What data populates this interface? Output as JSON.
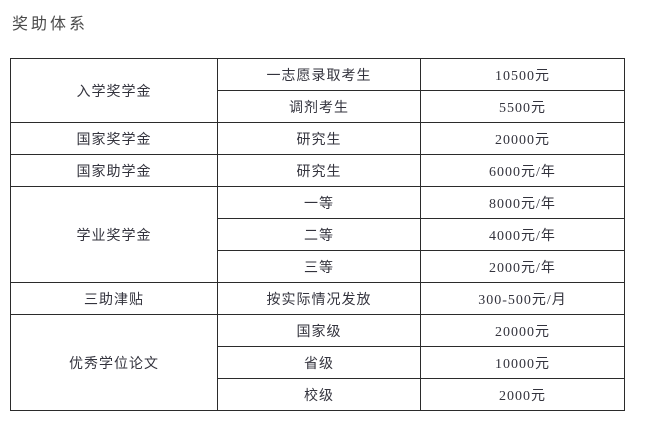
{
  "page": {
    "title": "奖助体系"
  },
  "table": {
    "groups": [
      {
        "category": "入学奖学金",
        "rows": [
          {
            "item": "一志愿录取考生",
            "amount": "10500元"
          },
          {
            "item": "调剂考生",
            "amount": "5500元"
          }
        ]
      },
      {
        "category": "国家奖学金",
        "rows": [
          {
            "item": "研究生",
            "amount": "20000元"
          }
        ]
      },
      {
        "category": "国家助学金",
        "rows": [
          {
            "item": "研究生",
            "amount": "6000元/年"
          }
        ]
      },
      {
        "category": "学业奖学金",
        "rows": [
          {
            "item": "一等",
            "amount": "8000元/年"
          },
          {
            "item": "二等",
            "amount": "4000元/年"
          },
          {
            "item": "三等",
            "amount": "2000元/年"
          }
        ]
      },
      {
        "category": "三助津贴",
        "rows": [
          {
            "item": "按实际情况发放",
            "amount": "300-500元/月"
          }
        ]
      },
      {
        "category": "优秀学位论文",
        "rows": [
          {
            "item": "国家级",
            "amount": "20000元"
          },
          {
            "item": "省级",
            "amount": "10000元"
          },
          {
            "item": "校级",
            "amount": "2000元"
          }
        ]
      }
    ]
  }
}
